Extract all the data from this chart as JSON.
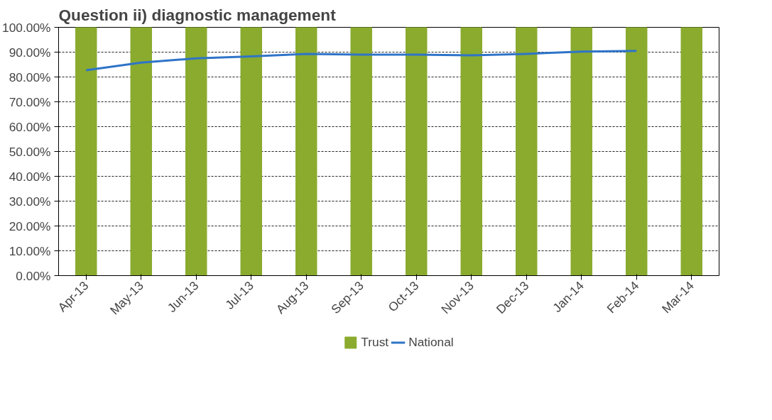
{
  "chart_data": {
    "type": "bar",
    "title": "Question ii) diagnostic management",
    "categories": [
      "Apr-13",
      "May-13",
      "Jun-13",
      "Jul-13",
      "Aug-13",
      "Sep-13",
      "Oct-13",
      "Nov-13",
      "Dec-13",
      "Jan-14",
      "Feb-14",
      "Mar-14"
    ],
    "series": [
      {
        "name": "Trust",
        "color": "#8aab2e",
        "values": [
          100,
          100,
          100,
          100,
          100,
          100,
          100,
          100,
          100,
          100,
          100,
          100
        ]
      },
      {
        "name": "National",
        "type": "line",
        "color": "#2f74c8",
        "values": [
          82.7,
          85.8,
          87.5,
          88.3,
          89.3,
          89.0,
          89.0,
          88.7,
          89.3,
          90.2,
          90.5,
          null
        ]
      }
    ],
    "ylim": [
      0,
      100
    ],
    "yticks": [
      {
        "value": 0,
        "label": "0.00%"
      },
      {
        "value": 10,
        "label": "10.00%"
      },
      {
        "value": 20,
        "label": "20.00%"
      },
      {
        "value": 30,
        "label": "30.00%"
      },
      {
        "value": 40,
        "label": "40.00%"
      },
      {
        "value": 50,
        "label": "50.00%"
      },
      {
        "value": 60,
        "label": "60.00%"
      },
      {
        "value": 70,
        "label": "70.00%"
      },
      {
        "value": 80,
        "label": "80.00%"
      },
      {
        "value": 90,
        "label": "90.00%"
      },
      {
        "value": 100,
        "label": "100.00%"
      }
    ],
    "grid": "y",
    "legend": "bottom"
  }
}
